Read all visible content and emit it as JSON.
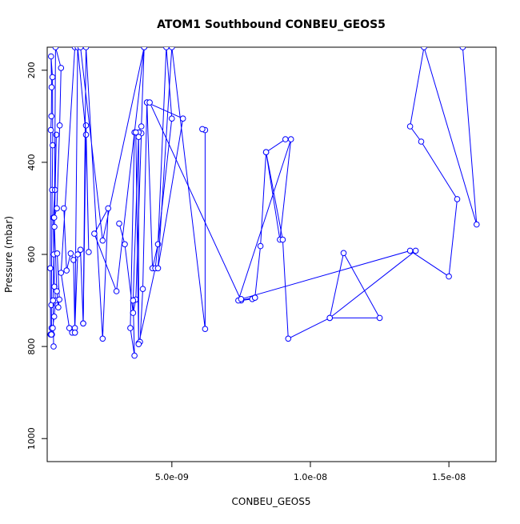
{
  "chart_data": {
    "type": "line",
    "title": "ATOM1 Southbound CONBEU_GEOS5",
    "xlabel": "CONBEU_GEOS5",
    "ylabel": "Pressure (mbar)",
    "xlim": [
      5e-10,
      1.67e-08
    ],
    "ylim": [
      1050,
      150
    ],
    "y_reversed": true,
    "x_ticks": [
      {
        "value": 5e-09,
        "label": "5.0e-09"
      },
      {
        "value": 1e-08,
        "label": "1.0e-08"
      },
      {
        "value": 1.5e-08,
        "label": "1.5e-08"
      }
    ],
    "y_ticks": [
      {
        "value": 200,
        "label": "200"
      },
      {
        "value": 400,
        "label": "400"
      },
      {
        "value": 600,
        "label": "600"
      },
      {
        "value": 800,
        "label": "800"
      },
      {
        "value": 1000,
        "label": "1000"
      }
    ],
    "grid": false,
    "legend": "none",
    "series_color": "#0000ff",
    "series": [
      {
        "x": [
          6.2e-10,
          6.1e-10,
          6.3e-10,
          6.5e-10,
          6.6e-10,
          6.4e-10,
          6.9e-10,
          7e-10,
          6.8e-10,
          6.5e-10,
          6.6e-10,
          6.7e-10
        ],
        "y": [
          774,
          630,
          330,
          300,
          237,
          170,
          215,
          363,
          460,
          710,
          760,
          774
        ]
      },
      {
        "x": [
          6.5e-10,
          7e-10,
          7.5e-10,
          8e-10,
          7.6e-10,
          7.2e-10,
          7.8e-10,
          8.3e-10,
          7.4e-10,
          7.1e-10,
          7.3e-10
        ],
        "y": [
          774,
          760,
          735,
          700,
          670,
          520,
          460,
          340,
          600,
          700,
          800
        ]
      },
      {
        "x": [
          7.5e-10,
          8.5e-10,
          9.5e-10,
          1e-09,
          8e-10,
          7.6e-10,
          8.5e-10,
          9e-10,
          9.4e-10,
          8.6e-10
        ],
        "y": [
          520,
          500,
          320,
          195,
          150,
          540,
          680,
          715,
          698,
          598
        ]
      },
      {
        "x": [
          1.1e-09,
          1.2e-09,
          1.35e-09,
          1.45e-09,
          1.5e-09,
          1.3e-09,
          1e-09,
          1.5e-09
        ],
        "y": [
          500,
          635,
          598,
          612,
          770,
          760,
          640,
          150
        ]
      },
      {
        "x": [
          1.4e-09,
          1.5e-09,
          1.6e-09,
          1.7e-09,
          1.8e-09,
          1.9e-09,
          2e-09,
          1.9e-09,
          1.6e-09,
          1.5e-09
        ],
        "y": [
          770,
          760,
          600,
          590,
          750,
          320,
          595,
          340,
          150,
          770
        ]
      },
      {
        "x": [
          1.8e-09,
          1.9e-09,
          2.5e-09,
          2.7e-09,
          2.2e-09,
          3e-09,
          4e-09,
          2.5e-09,
          1.7e-09
        ],
        "y": [
          750,
          150,
          783,
          500,
          555,
          680,
          150,
          570,
          150
        ]
      },
      {
        "x": [
          3.1e-09,
          3.3e-09,
          3.6e-09,
          3.7e-09,
          3.9e-09,
          3.65e-09,
          3.5e-09,
          3.65e-09,
          3.6e-09,
          3.8e-09,
          3.9e-09,
          4e-09
        ],
        "y": [
          533,
          578,
          727,
          698,
          337,
          335,
          760,
          820,
          700,
          335,
          322,
          150
        ]
      },
      {
        "x": [
          3.7e-09,
          3.8e-09,
          3.85e-09,
          3.95e-09,
          4.1e-09,
          4.3e-09,
          4.5e-09,
          4.8e-09,
          5e-09,
          4.4e-09,
          3.8e-09,
          3.8e-09
        ],
        "y": [
          335,
          793,
          790,
          675,
          270,
          630,
          578,
          150,
          305,
          630,
          795,
          345
        ]
      },
      {
        "x": [
          4.1e-09,
          5.4e-09,
          4.5e-09,
          5e-09,
          6.2e-09,
          6.2e-09,
          6.1e-09
        ],
        "y": [
          270,
          305,
          630,
          150,
          762,
          330,
          328
        ]
      },
      {
        "x": [
          4.2e-09,
          7.5e-09,
          7.9e-09,
          8e-09,
          8.2e-09,
          8.4e-09,
          8.9e-09,
          9.3e-09,
          7.4e-09,
          8e-09
        ],
        "y": [
          270,
          700,
          697,
          694,
          582,
          378,
          568,
          350,
          700,
          694
        ]
      },
      {
        "x": [
          9.1e-09,
          8.4e-09,
          9e-09,
          9.2e-09,
          1.07e-08,
          1.12e-08,
          1.25e-08,
          1.07e-08,
          1.38e-08
        ],
        "y": [
          350,
          378,
          568,
          783,
          738,
          597,
          738,
          738,
          592
        ]
      },
      {
        "x": [
          7.5e-09,
          1.36e-08,
          1.5e-08,
          1.53e-08,
          1.4e-08,
          1.36e-08,
          1.41e-08,
          1.6e-08,
          1.55e-08
        ],
        "y": [
          697,
          592,
          648,
          480,
          355,
          322,
          150,
          535,
          150
        ]
      }
    ]
  }
}
